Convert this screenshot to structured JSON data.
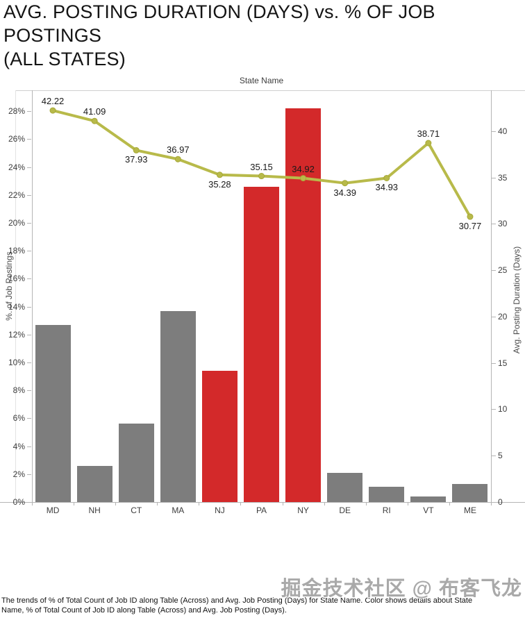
{
  "title": "AVG. POSTING DURATION (DAYS) vs. % OF JOB\nPOSTINGS\n(ALL STATES)",
  "top_axis_label": "State Name",
  "left_axis": {
    "title": "%. of Job Postings",
    "ticks": [
      "0%",
      "2%",
      "4%",
      "6%",
      "8%",
      "10%",
      "12%",
      "14%",
      "16%",
      "18%",
      "20%",
      "22%",
      "24%",
      "26%",
      "28%"
    ]
  },
  "right_axis": {
    "title": "Avg. Posting Duration (Days)",
    "ticks": [
      "0",
      "5",
      "10",
      "15",
      "20",
      "25",
      "30",
      "35",
      "40"
    ]
  },
  "chart_data": {
    "type": "dual-axis-bar-line",
    "categories": [
      "MD",
      "NH",
      "CT",
      "MA",
      "NJ",
      "PA",
      "NY",
      "DE",
      "RI",
      "VT",
      "ME"
    ],
    "left_axis_range": [
      0,
      29.5
    ],
    "right_axis_range": [
      0,
      44.4
    ],
    "grid": false,
    "legend": "none",
    "series": [
      {
        "name": "% of Total Count of Job ID",
        "type": "bar",
        "axis": "left",
        "values": [
          12.7,
          2.6,
          5.6,
          13.7,
          9.4,
          22.6,
          28.2,
          2.1,
          1.1,
          0.4,
          1.3
        ],
        "highlighted": [
          "NJ",
          "PA",
          "NY"
        ]
      },
      {
        "name": "Avg. Job Posting (Days)",
        "type": "line",
        "axis": "right",
        "values": [
          42.22,
          41.09,
          37.93,
          36.97,
          35.28,
          35.15,
          34.92,
          34.39,
          34.93,
          38.71,
          30.77
        ],
        "label_positions": [
          "above",
          "above",
          "below",
          "above",
          "below",
          "above",
          "above",
          "below",
          "below",
          "above",
          "below"
        ]
      }
    ]
  },
  "colors": {
    "bar_default": "#7d7d7d",
    "bar_highlight": "#d3292a",
    "line": "#b8ba4a",
    "line_marker_stroke": "#a6a838",
    "axis_line": "#b4b4b4"
  },
  "caption": "The trends of % of Total Count of Job ID along Table (Across) and Avg. Job Posting (Days) for State Name.  Color shows details about State\nName, % of Total Count of Job ID along Table (Across) and Avg. Job Posting (Days).",
  "watermark": "掘金技术社区 @ 布客飞龙"
}
